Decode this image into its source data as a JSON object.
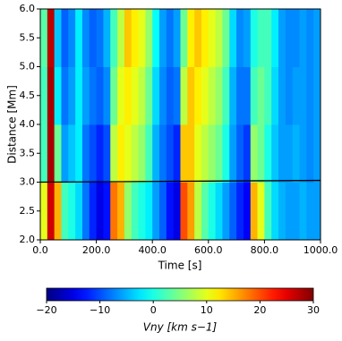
{
  "chart_data": {
    "type": "heatmap",
    "xlabel": "Time [s]",
    "ylabel": "Distance [Mm]",
    "xlim": [
      0,
      1000
    ],
    "ylim": [
      2,
      6
    ],
    "xticks": [
      {
        "value": 0,
        "label": "0.0"
      },
      {
        "value": 200,
        "label": "200.0"
      },
      {
        "value": 400,
        "label": "400.0"
      },
      {
        "value": 600,
        "label": "600.0"
      },
      {
        "value": 800,
        "label": "800.0"
      },
      {
        "value": 1000,
        "label": "1000.0"
      }
    ],
    "yticks": [
      {
        "value": 2,
        "label": "2.0"
      },
      {
        "value": 2.5,
        "label": "2.5"
      },
      {
        "value": 3,
        "label": "3.0"
      },
      {
        "value": 3.5,
        "label": "3.5"
      },
      {
        "value": 4,
        "label": "4.0"
      },
      {
        "value": 4.5,
        "label": "4.5"
      },
      {
        "value": 5,
        "label": "5.0"
      },
      {
        "value": 5.5,
        "label": "5.5"
      },
      {
        "value": 6,
        "label": "6.0"
      }
    ],
    "xbins": [
      0,
      25,
      50,
      75,
      100,
      125,
      150,
      175,
      200,
      225,
      250,
      275,
      300,
      325,
      350,
      375,
      400,
      425,
      450,
      475,
      500,
      525,
      550,
      575,
      600,
      625,
      650,
      675,
      700,
      725,
      750,
      775,
      800,
      825,
      850,
      875,
      900,
      925,
      950,
      975,
      1000
    ],
    "ybins": [
      2,
      3,
      4,
      5,
      6
    ],
    "values": [
      [
        10,
        26,
        15,
        2,
        0,
        -3,
        -8,
        -12,
        -15,
        -13,
        18,
        15,
        6,
        2,
        0,
        -2,
        -6,
        -9,
        -13,
        -15,
        20,
        16,
        8,
        3,
        0,
        -3,
        -6,
        -9,
        -12,
        -14,
        15,
        10,
        2,
        -3,
        -5,
        -6,
        -6,
        -5,
        -6,
        -6
      ],
      [
        2,
        28,
        4,
        -6,
        -4,
        -2,
        -8,
        -10,
        -12,
        -10,
        8,
        12,
        10,
        8,
        6,
        2,
        -5,
        -8,
        -10,
        -12,
        14,
        14,
        10,
        8,
        6,
        4,
        0,
        -6,
        -9,
        -11,
        6,
        4,
        0,
        -4,
        -6,
        -6,
        -5,
        -6,
        -7,
        -6
      ],
      [
        2,
        28,
        -2,
        -8,
        -6,
        -2,
        -6,
        -8,
        -9,
        -7,
        4,
        10,
        12,
        10,
        8,
        4,
        -3,
        -7,
        -9,
        -8,
        8,
        14,
        12,
        10,
        8,
        6,
        2,
        -5,
        -8,
        -8,
        2,
        4,
        2,
        -3,
        -6,
        -7,
        -6,
        -6,
        -7,
        -6
      ],
      [
        3,
        27,
        -4,
        -9,
        -7,
        -2,
        -7,
        -9,
        -8,
        -5,
        2,
        8,
        14,
        12,
        10,
        6,
        -1,
        -6,
        -8,
        -6,
        4,
        12,
        14,
        12,
        10,
        8,
        4,
        -3,
        -7,
        -6,
        0,
        2,
        2,
        -2,
        -6,
        -7,
        -7,
        -6,
        -7,
        -6
      ]
    ],
    "line": {
      "x": [
        0,
        1000
      ],
      "y": [
        3.0,
        3.03
      ],
      "color": "#000000"
    },
    "colormap": "jet",
    "clim": [
      -20,
      30
    ],
    "cticks": [
      {
        "value": -20,
        "label": "−20"
      },
      {
        "value": -10,
        "label": "−10"
      },
      {
        "value": 0,
        "label": "0"
      },
      {
        "value": 10,
        "label": "10"
      },
      {
        "value": 20,
        "label": "20"
      },
      {
        "value": 30,
        "label": "30"
      }
    ],
    "colorbar_label": "Vny [km s−1]"
  }
}
